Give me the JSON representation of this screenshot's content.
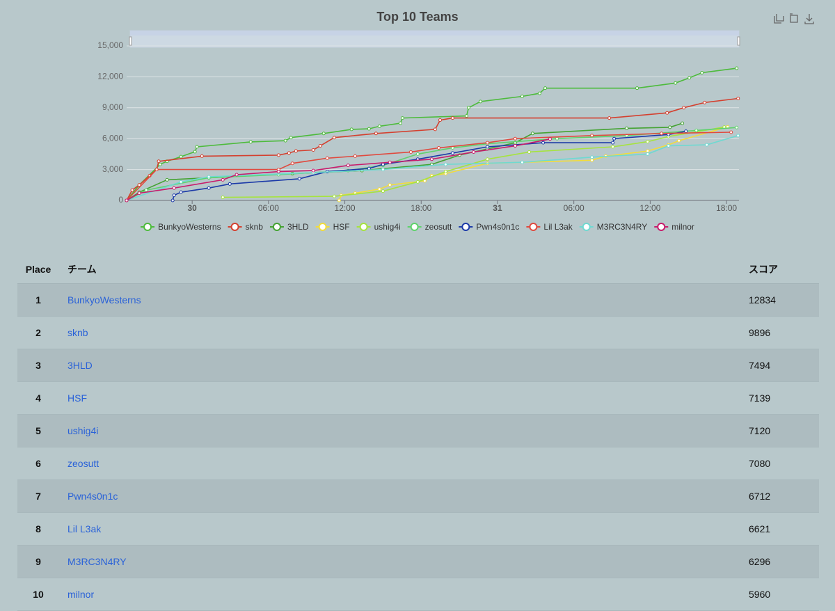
{
  "chart_data": {
    "type": "line",
    "title": "Top 10 Teams",
    "xlim": [
      -5.15,
      42.98
    ],
    "xticks": [
      {
        "value": 0,
        "label": "30"
      },
      {
        "value": 6,
        "label": "06:00"
      },
      {
        "value": 12,
        "label": "12:00"
      },
      {
        "value": 18,
        "label": "18:00"
      },
      {
        "value": 24,
        "label": "31"
      },
      {
        "value": 30,
        "label": "06:00"
      },
      {
        "value": 36,
        "label": "12:00"
      },
      {
        "value": 42,
        "label": "18:00"
      }
    ],
    "ylim": [
      0,
      15000
    ],
    "yticks": [
      0,
      {
        "value": 3000,
        "label": "3,000"
      },
      {
        "value": 6000,
        "label": "6,000"
      },
      {
        "value": 9000,
        "label": "9,000"
      },
      {
        "value": 12000,
        "label": "12,000"
      },
      {
        "value": 15000,
        "label": "15,000"
      }
    ],
    "grid": true,
    "series": [
      {
        "name": "BunkyoWesterns",
        "color": "#4dbb3c",
        "x": [
          -5.15,
          -4.16,
          -2.52,
          -1.97,
          -0.88,
          0.22,
          0.38,
          4.6,
          7.33,
          7.77,
          10.34,
          12.53,
          13.9,
          14.72,
          16.37,
          16.53,
          21.57,
          21.73,
          22.66,
          25.94,
          27.31,
          27.75,
          34.97,
          37.99,
          39.08,
          40.07,
          42.8
        ],
        "values": [
          0,
          1500,
          3500,
          3800,
          4250,
          4730,
          5200,
          5680,
          5800,
          6100,
          6500,
          6900,
          6950,
          7200,
          7500,
          8000,
          8200,
          9000,
          9600,
          10100,
          10400,
          10900,
          10900,
          11400,
          11900,
          12400,
          12834
        ]
      },
      {
        "name": "sknb",
        "color": "#d4402f",
        "x": [
          -5.15,
          -4.71,
          -4.16,
          -3.34,
          -2.79,
          -2.63,
          0.77,
          6.79,
          7.61,
          8.16,
          9.52,
          10.07,
          11.17,
          14.45,
          19.1,
          19.49,
          20.47,
          32.79,
          37.33,
          38.64,
          40.28,
          42.91
        ],
        "values": [
          0,
          1000,
          1500,
          2400,
          3000,
          3800,
          4300,
          4400,
          4600,
          4800,
          4900,
          5300,
          6100,
          6500,
          6900,
          7800,
          8000,
          8000,
          8500,
          9000,
          9500,
          9896
        ]
      },
      {
        "name": "3HLD",
        "color": "#44a332",
        "x": [
          -5.15,
          -4.16,
          -1.97,
          1.31,
          7.88,
          13.35,
          18.83,
          21.02,
          23.21,
          25.39,
          26.76,
          34.15,
          37.55,
          38.53
        ],
        "values": [
          0,
          800,
          2000,
          2200,
          2600,
          2900,
          3500,
          4400,
          5000,
          5600,
          6500,
          7000,
          7100,
          7494
        ]
      },
      {
        "name": "HSF",
        "color": "#f2dc3c",
        "x": [
          11.55,
          11.71,
          12.81,
          14.72,
          15.54,
          18.28,
          18.83,
          19.92,
          23.21,
          31.42,
          32.51,
          35.8,
          37.44,
          38.26,
          42.09
        ],
        "values": [
          0,
          500,
          700,
          1100,
          1500,
          1900,
          2400,
          2600,
          3600,
          3900,
          4300,
          4800,
          5400,
          5800,
          7139
        ]
      },
      {
        "name": "ushig4i",
        "color": "#a6e33f",
        "x": [
          2.41,
          11.17,
          15.0,
          17.73,
          19.92,
          23.21,
          26.49,
          33.06,
          35.8,
          37.44,
          41.82
        ],
        "values": [
          300,
          400,
          900,
          1800,
          2800,
          4000,
          4700,
          5200,
          5700,
          6200,
          7120
        ]
      },
      {
        "name": "zeosutt",
        "color": "#5fd26c",
        "x": [
          -5.15,
          -3.61,
          1.31,
          6.79,
          12.26,
          15.0,
          17.73,
          20.47,
          23.21,
          28.68,
          34.15,
          39.63,
          42.8
        ],
        "values": [
          0,
          1000,
          2200,
          2500,
          2900,
          3400,
          4500,
          5100,
          5500,
          6000,
          6300,
          6800,
          7080
        ]
      },
      {
        "name": "Pwn4s0n1c",
        "color": "#1c3aa8",
        "x": [
          -1.53,
          -1.42,
          -0.88,
          1.31,
          2.96,
          8.43,
          10.62,
          13.9,
          15.0,
          17.73,
          20.47,
          23.21,
          27.59,
          33.06,
          33.17,
          37.44,
          38.81
        ],
        "values": [
          0,
          500,
          800,
          1200,
          1600,
          2100,
          2800,
          3100,
          3500,
          4000,
          4600,
          5200,
          5600,
          5600,
          6000,
          6400,
          6712
        ]
      },
      {
        "name": "Lil L3ak",
        "color": "#e04a3f",
        "x": [
          -5.15,
          -2.79,
          6.79,
          7.88,
          10.62,
          12.81,
          17.19,
          19.38,
          23.21,
          25.39,
          31.42,
          36.89,
          42.36
        ],
        "values": [
          0,
          3000,
          3000,
          3600,
          4100,
          4300,
          4700,
          5100,
          5600,
          6000,
          6300,
          6500,
          6621
        ]
      },
      {
        "name": "M3RC3N4RY",
        "color": "#6fd9d1",
        "x": [
          -5.15,
          -0.88,
          1.31,
          9.52,
          15.0,
          19.92,
          25.94,
          31.42,
          35.8,
          37.44,
          40.45,
          42.91
        ],
        "values": [
          0,
          1800,
          2300,
          2700,
          3000,
          3500,
          3700,
          4200,
          4500,
          5300,
          5400,
          6296
        ]
      },
      {
        "name": "milnor",
        "color": "#c81c6c",
        "x": [
          -5.15,
          -4.16,
          -1.42,
          2.41,
          3.5,
          6.79,
          9.52,
          12.26,
          15.54,
          18.83,
          22.12,
          25.39,
          28.13
        ],
        "values": [
          0,
          700,
          1200,
          2000,
          2500,
          2800,
          2900,
          3400,
          3700,
          4000,
          4700,
          5300,
          5960
        ]
      }
    ]
  },
  "table": {
    "headers": [
      "Place",
      "チーム",
      "スコア"
    ],
    "rows": [
      [
        1,
        "BunkyoWesterns",
        12834
      ],
      [
        2,
        "sknb",
        9896
      ],
      [
        3,
        "3HLD",
        7494
      ],
      [
        4,
        "HSF",
        7139
      ],
      [
        5,
        "ushig4i",
        7120
      ],
      [
        6,
        "zeosutt",
        7080
      ],
      [
        7,
        "Pwn4s0n1c",
        6712
      ],
      [
        8,
        "Lil L3ak",
        6621
      ],
      [
        9,
        "M3RC3N4RY",
        6296
      ],
      [
        10,
        "milnor",
        5960
      ]
    ]
  }
}
